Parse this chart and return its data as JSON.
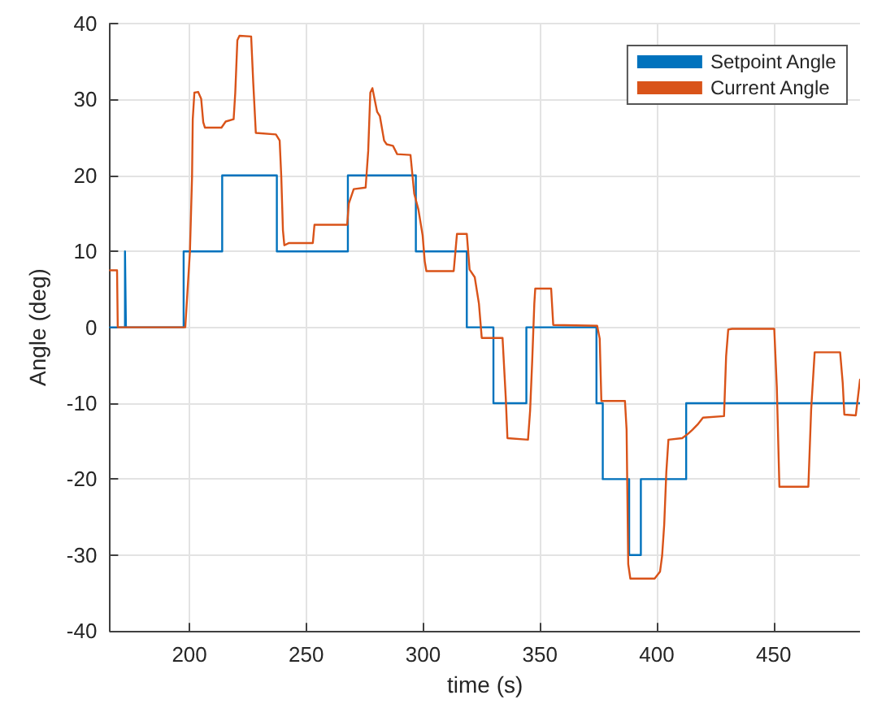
{
  "chart_data": {
    "type": "line",
    "xlabel": "time (s)",
    "ylabel": "Angle (deg)",
    "xlim": [
      166,
      487
    ],
    "xticks": [
      200,
      250,
      300,
      350,
      400,
      450
    ],
    "ylim": [
      -40,
      40
    ],
    "yticks": [
      -40,
      -30,
      -20,
      -10,
      0,
      10,
      20,
      30,
      40
    ],
    "grid": true,
    "legend": "top right",
    "marker": "none",
    "line_style": "solid",
    "series": [
      {
        "name": "Setpoint Angle",
        "type": "step",
        "color": "#0072bd",
        "x": [
          166,
          172.4,
          172.8,
          197.5,
          214,
          237.4,
          267.8,
          296.9,
          318.7,
          330.1,
          344.2,
          374.2,
          376.9,
          388.2,
          393.2,
          412.6,
          487
        ],
        "values": [
          0,
          10,
          0,
          10,
          20,
          10,
          20,
          10,
          0,
          -10,
          0,
          -10,
          -20,
          -30,
          -20,
          -10,
          -10
        ]
      },
      {
        "name": "Current Angle",
        "type": "line",
        "color": "#d95319",
        "x": [
          166,
          169,
          169.3,
          198.2,
          200.2,
          201.1,
          201.4,
          202.1,
          203.7,
          205,
          205.9,
          206.6,
          213.7,
          215.5,
          218.9,
          219.6,
          220.5,
          221.4,
          226.4,
          227.3,
          228.4,
          237,
          238.6,
          239.3,
          240,
          240.6,
          242.6,
          252.8,
          253.5,
          267.5,
          268.2,
          270.3,
          275.4,
          276.5,
          277.4,
          278.3,
          279.2,
          280.3,
          281.5,
          283.3,
          284.4,
          287.1,
          288.9,
          294.6,
          296.2,
          298,
          299.8,
          300.7,
          301.4,
          313.1,
          314.5,
          318.7,
          319.9,
          322.1,
          323.9,
          325.1,
          334,
          335.4,
          336.1,
          344.9,
          345.8,
          346.7,
          347.6,
          348,
          354.8,
          355.7,
          374.5,
          375.6,
          376.3,
          386.4,
          387.1,
          387.8,
          388.7,
          399.1,
          401.4,
          402.3,
          403.2,
          404.1,
          405,
          410.9,
          413.5,
          415.3,
          417.5,
          419.8,
          428.8,
          429.7,
          430.6,
          432.2,
          450.3,
          451.4,
          452.5,
          464.9,
          466.1,
          467.6,
          478.5,
          479.6,
          480.3,
          485.2,
          487
        ],
        "values": [
          7.5,
          7.5,
          0,
          0,
          10,
          19.8,
          27.4,
          30.9,
          31,
          30.1,
          27,
          26.3,
          26.3,
          27.1,
          27.4,
          30.9,
          37.8,
          38.4,
          38.3,
          32.2,
          25.6,
          25.4,
          24.6,
          19.8,
          12.8,
          10.8,
          11.1,
          11.1,
          13.5,
          13.5,
          16.3,
          18.2,
          18.4,
          23.2,
          30.9,
          31.5,
          30.1,
          28.4,
          27.8,
          24.6,
          24.1,
          23.9,
          22.8,
          22.7,
          17.6,
          15.5,
          12.1,
          8.7,
          7.4,
          7.4,
          12.3,
          12.3,
          7.6,
          6.6,
          3.1,
          -1.4,
          -1.4,
          -9.4,
          -14.6,
          -14.8,
          -11,
          -4.4,
          3.1,
          5.1,
          5.1,
          0.3,
          0.2,
          -1.5,
          -9.7,
          -9.7,
          -13.5,
          -31.2,
          -33.1,
          -33.1,
          -32.2,
          -30.1,
          -26,
          -19.1,
          -14.8,
          -14.6,
          -14,
          -13.5,
          -12.8,
          -11.9,
          -11.7,
          -3.8,
          -0.3,
          -0.2,
          -0.2,
          -7.9,
          -21,
          -21,
          -10.8,
          -3.3,
          -3.3,
          -7.3,
          -11.5,
          -11.6,
          -6.9
        ]
      }
    ]
  }
}
